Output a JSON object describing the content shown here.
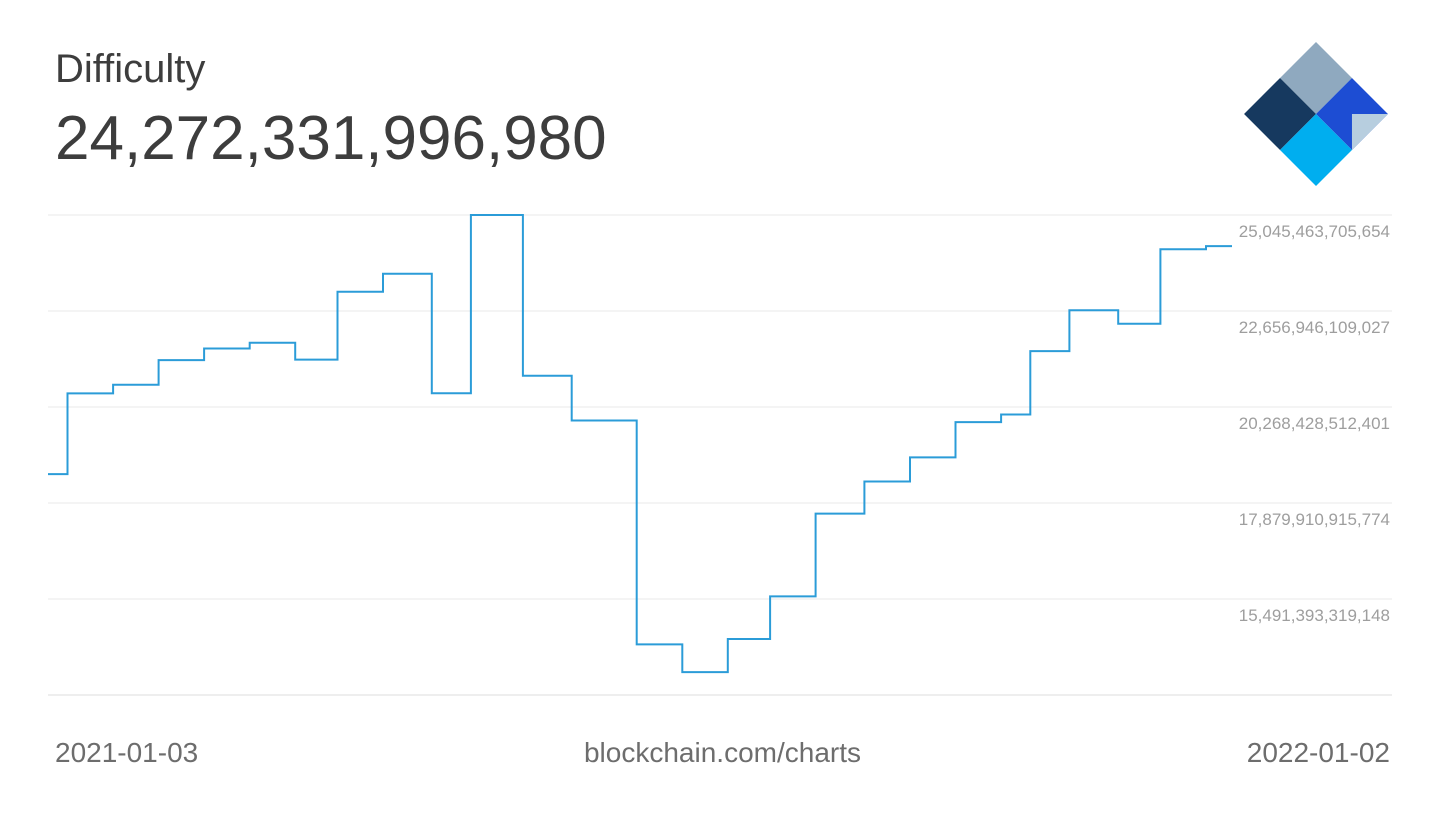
{
  "header": {
    "title": "Difficulty",
    "value": "24,272,331,996,980"
  },
  "logo": {
    "label": "blockchain-com-logo",
    "colors": {
      "top_facet": "#8FA9BF",
      "left_facet": "#16395F",
      "right_facet": "#1D4DD3",
      "accent_facet": "#B7CEDF",
      "bottom_facet": "#00AEEF"
    }
  },
  "chart_data": {
    "type": "line",
    "step": "after",
    "title": "Difficulty",
    "current_value": 24272331996980,
    "line_color": "#2B9CD8",
    "grid_color": "#E8E8E8",
    "axis_line_color": "#DCDCDC",
    "grid": true,
    "legend_position": "none",
    "x_range": [
      "2021-01-03",
      "2022-01-02"
    ],
    "x_tick_labels": [
      "2021-01-03",
      "2022-01-02"
    ],
    "watermark": "blockchain.com/charts",
    "y_axis": {
      "tick_labels": [
        "25,045,463,705,654",
        "22,656,946,109,027",
        "20,268,428,512,401",
        "17,879,910,915,774",
        "15,491,393,319,148"
      ],
      "tick_values": [
        25045463705654,
        22656946109027,
        20268428512401,
        17879910915774,
        15491393319148
      ],
      "tick_step": 2388517596627,
      "max": 25045463705654,
      "min": 13102875722521
    },
    "series": [
      {
        "name": "Difficulty",
        "points": [
          {
            "date": "2021-01-03",
            "value": 18599593048299
          },
          {
            "date": "2021-01-09",
            "value": 20607418304385
          },
          {
            "date": "2021-01-23",
            "value": 20823531150111
          },
          {
            "date": "2021-02-06",
            "value": 21434395961348
          },
          {
            "date": "2021-02-20",
            "value": 21724134900047
          },
          {
            "date": "2021-03-06",
            "value": 21865558044610
          },
          {
            "date": "2021-03-20",
            "value": 21448277761059
          },
          {
            "date": "2021-04-02",
            "value": 23137439666472
          },
          {
            "date": "2021-04-16",
            "value": 23581981443664
          },
          {
            "date": "2021-05-01",
            "value": 20608845737768
          },
          {
            "date": "2021-05-13",
            "value": 25046487590083
          },
          {
            "date": "2021-05-29",
            "value": 21047730572451
          },
          {
            "date": "2021-06-13",
            "value": 19932791027263
          },
          {
            "date": "2021-07-03",
            "value": 14363025673659
          },
          {
            "date": "2021-07-17",
            "value": 13673184435760
          },
          {
            "date": "2021-07-31",
            "value": 14496442856349
          },
          {
            "date": "2021-08-13",
            "value": 15556093717113
          },
          {
            "date": "2021-08-27",
            "value": 17615033039278
          },
          {
            "date": "2021-09-11",
            "value": 18415156832118
          },
          {
            "date": "2021-09-25",
            "value": 19013597927068
          },
          {
            "date": "2021-10-09",
            "value": 19893045048575
          },
          {
            "date": "2021-10-23",
            "value": 20082036441466
          },
          {
            "date": "2021-11-01",
            "value": 21659344833264
          },
          {
            "date": "2021-11-13",
            "value": 22674148233453
          },
          {
            "date": "2021-11-28",
            "value": 22339423767662
          },
          {
            "date": "2021-12-11",
            "value": 24195618169927
          },
          {
            "date": "2021-12-25",
            "value": 24272331996980
          }
        ]
      }
    ]
  },
  "footer": {
    "left_label": "2021-01-03",
    "center_label": "blockchain.com/charts",
    "right_label": "2022-01-02"
  }
}
